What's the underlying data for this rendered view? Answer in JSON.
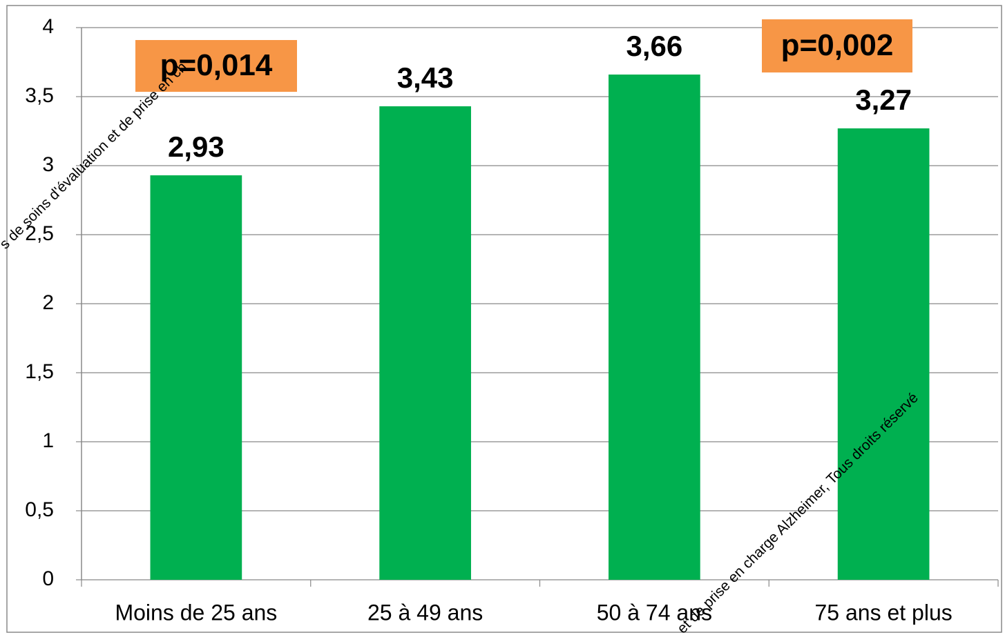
{
  "chart_data": {
    "type": "bar",
    "categories": [
      "Moins de 25 ans",
      "25 à 49 ans",
      "50 à 74 ans",
      "75 ans et plus"
    ],
    "values": [
      2.93,
      3.43,
      3.66,
      3.27
    ],
    "value_labels": [
      "2,93",
      "3,43",
      "3,66",
      "3,27"
    ],
    "color": "#00b050",
    "ylim": [
      0,
      4
    ],
    "yticks": [
      0,
      {
        "value": 0.5,
        "label": "0,5"
      },
      1,
      {
        "value": 1.5,
        "label": "1,5"
      },
      2,
      {
        "value": 2.5,
        "label": "2,5"
      },
      3,
      {
        "value": 3.5,
        "label": "3,5"
      },
      4
    ],
    "grid": true,
    "annotations": [
      "p=0,014",
      "p=0,002"
    ],
    "watermarks": [
      "s de soins d'évaluation et de prise en ch",
      "et de prise en charge Alzheimer, Tous droits réservé"
    ]
  }
}
